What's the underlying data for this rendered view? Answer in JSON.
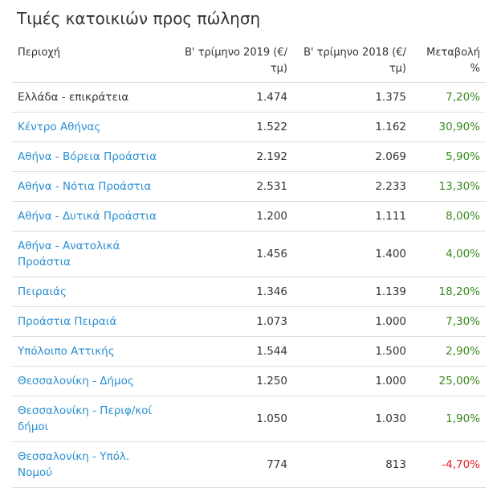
{
  "title": "Τιμές κατοικιών προς πώληση",
  "table": {
    "headers": [
      "Περιοχή",
      "Β' τρίμηνο 2019 (€/ τμ)",
      "Β' τρίμηνο 2018 (€/ τμ)",
      "Μεταβολή %"
    ],
    "rows": [
      [
        "Ελλάδα - επικράτεια",
        "1.474",
        "1.375",
        "7,20%"
      ],
      [
        "Κέντρο Αθήνας",
        "1.522",
        "1.162",
        "30,90%"
      ],
      [
        "Αθήνα - Βόρεια Προάστια",
        "2.192",
        "2.069",
        "5,90%"
      ],
      [
        "Αθήνα - Νότια Προάστια",
        "2.531",
        "2.233",
        "13,30%"
      ],
      [
        "Αθήνα - Δυτικά Προάστια",
        "1.200",
        "1.111",
        "8,00%"
      ],
      [
        "Αθήνα - Ανατολικά Προάστια",
        "1.456",
        "1.400",
        "4,00%"
      ],
      [
        "Πειραιάς",
        "1.346",
        "1.139",
        "18,20%"
      ],
      [
        "Προάστια Πειραιά",
        "1.073",
        "1.000",
        "7,30%"
      ],
      [
        "Υπόλοιπο Αττικής",
        "1.544",
        "1.500",
        "2,90%"
      ],
      [
        "Θεσσαλονίκη - Δήμος",
        "1.250",
        "1.000",
        "25,00%"
      ],
      [
        "Θεσσαλονίκη - Περιφ/κοί δήμοι",
        "1.050",
        "1.030",
        "1,90%"
      ],
      [
        "Θεσσαλονίκη - Υπόλ. Νομού",
        "774",
        "813",
        "-4,70%"
      ]
    ]
  }
}
